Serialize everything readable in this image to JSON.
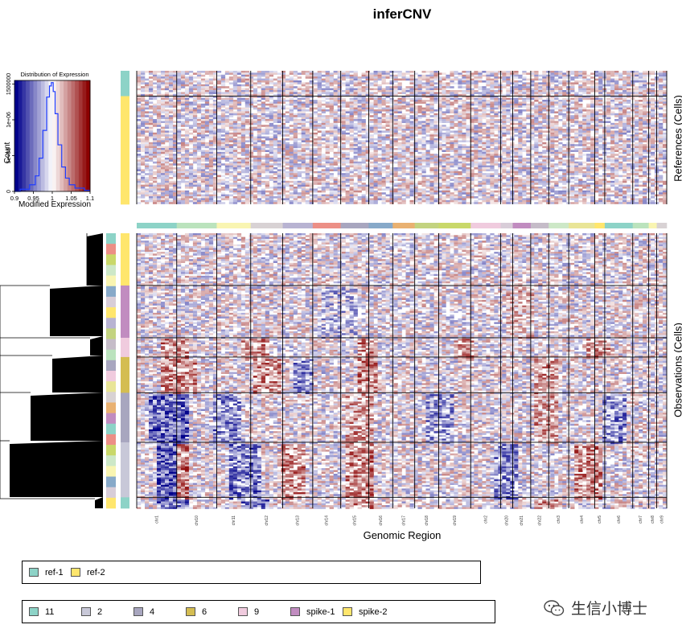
{
  "title": "inferCNV",
  "xlabel": "Genomic Region",
  "ylabel_references": "References (Cells)",
  "ylabel_observations": "Observations (Cells)",
  "color_key": {
    "title": "Distribution of Expression",
    "xlabel": "Modified Expression",
    "ylabel": "Count",
    "x_ticks": [
      "0.9",
      "0.95",
      "1",
      "1.05",
      "1.1"
    ],
    "y_ticks": [
      "0",
      "5e+05",
      "1e+06",
      "1500000"
    ],
    "colors": [
      "#00008b",
      "#ffffff",
      "#8b0000"
    ]
  },
  "chart_data": {
    "type": "heatmap",
    "title": "inferCNV",
    "xlabel": "Genomic Region",
    "chromosomes": [
      "chr1",
      "chr2",
      "chr3",
      "chr4",
      "chr5",
      "chr6",
      "chr7",
      "chr8",
      "chr9",
      "chr10",
      "chr11",
      "chr12",
      "chr13",
      "chr14",
      "chr15",
      "chr16",
      "chr17",
      "chr18",
      "chr19",
      "chr20",
      "chr21",
      "chr22"
    ],
    "chromosome_tick_labels": [
      "chr1",
      "chr10",
      "chr11",
      "chr12",
      "chr13",
      "chr14",
      "chr15",
      "chr16",
      "chr17",
      "chr18",
      "chr19",
      "chr2",
      "chr20",
      "chr21",
      "chr22",
      "chr3",
      "chr4",
      "chr5",
      "chr6",
      "chr7",
      "chr8",
      "chr9"
    ],
    "chromosome_colors": [
      "#8dd3c7",
      "#bbe3bd",
      "#f9f5b2",
      "#d8d2d4",
      "#b8b3d2",
      "#ec8f86",
      "#a8a6bf",
      "#87a9c9",
      "#e9b171",
      "#c3d380",
      "#c9d86a",
      "#f0cbde",
      "#d8cdd8",
      "#c18cc0",
      "#c5bcc8",
      "#cde8c7",
      "#e9e597",
      "#ffe66d"
    ],
    "color_scale": {
      "min": 0.9,
      "center": 1.0,
      "max": 1.1,
      "low_color": "#00008b",
      "mid_color": "#ffffff",
      "high_color": "#8b0000"
    },
    "expression_histogram": {
      "x": [
        0.9,
        0.95,
        1.0,
        1.05,
        1.1
      ],
      "peak_count": 1500000
    },
    "reference_groups": [
      {
        "name": "ref-1",
        "color": "#8dd3c7",
        "cell_fraction": 0.19
      },
      {
        "name": "ref-2",
        "color": "#ffe66d",
        "cell_fraction": 0.81
      }
    ],
    "observation_groups": [
      {
        "name": "spike-2",
        "color": "#ffe66d",
        "cell_fraction": 0.19
      },
      {
        "name": "spike-1",
        "color": "#c18cc0",
        "cell_fraction": 0.19
      },
      {
        "name": "9",
        "color": "#f0cbde",
        "cell_fraction": 0.07
      },
      {
        "name": "6",
        "color": "#d4bd52",
        "cell_fraction": 0.13
      },
      {
        "name": "4",
        "color": "#a8a6bf",
        "cell_fraction": 0.18
      },
      {
        "name": "2",
        "color": "#c8c8d8",
        "cell_fraction": 0.2
      },
      {
        "name": "11",
        "color": "#8dd3c7",
        "cell_fraction": 0.04
      }
    ]
  },
  "legend_references": [
    {
      "label": "ref-1",
      "color": "#8dd3c7"
    },
    {
      "label": "ref-2",
      "color": "#ffe66d"
    }
  ],
  "legend_observations": [
    {
      "label": "11",
      "color": "#8dd3c7"
    },
    {
      "label": "2",
      "color": "#c8c8d8"
    },
    {
      "label": "4",
      "color": "#a8a6bf"
    },
    {
      "label": "6",
      "color": "#d4bd52"
    },
    {
      "label": "9",
      "color": "#f0cbde"
    },
    {
      "label": "spike-1",
      "color": "#c18cc0"
    },
    {
      "label": "spike-2",
      "color": "#ffe66d"
    }
  ],
  "watermark": {
    "text": "生信小博士",
    "icon": "wechat-icon"
  }
}
